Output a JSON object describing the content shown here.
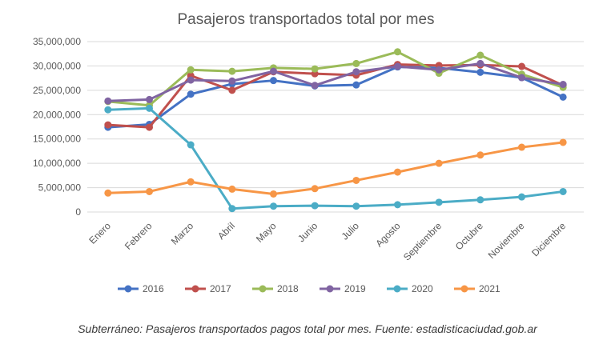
{
  "chart_data": {
    "type": "line",
    "title": "Pasajeros transportados total por mes",
    "categories": [
      "Enero",
      "Febrero",
      "Marzo",
      "Abril",
      "Mayo",
      "Junio",
      "Julio",
      "Agosto",
      "Septiembre",
      "Octubre",
      "Noviembre",
      "Diciembre"
    ],
    "ylim": [
      0,
      35000000
    ],
    "yticks": [
      0,
      5000000,
      10000000,
      15000000,
      20000000,
      25000000,
      30000000,
      35000000
    ],
    "ytick_labels": [
      "0",
      "5,000,000",
      "10,000,000",
      "15,000,000",
      "20,000,000",
      "25,000,000",
      "30,000,000",
      "35,000,000"
    ],
    "grid": true,
    "legend_position": "bottom",
    "series": [
      {
        "name": "2016",
        "color": "#4472C4",
        "values": [
          17400000,
          18000000,
          24200000,
          26300000,
          27000000,
          25900000,
          26100000,
          29800000,
          29600000,
          28700000,
          27600000,
          23600000
        ]
      },
      {
        "name": "2017",
        "color": "#C0504D",
        "values": [
          17900000,
          17400000,
          28000000,
          25000000,
          28800000,
          28400000,
          28100000,
          30300000,
          30100000,
          30200000,
          29900000,
          26000000
        ]
      },
      {
        "name": "2018",
        "color": "#9BBB59",
        "values": [
          22700000,
          21900000,
          29200000,
          28900000,
          29600000,
          29400000,
          30500000,
          32900000,
          28500000,
          32200000,
          28300000,
          25600000
        ]
      },
      {
        "name": "2019",
        "color": "#8064A2",
        "values": [
          22800000,
          23100000,
          27100000,
          26900000,
          28900000,
          26000000,
          28800000,
          29900000,
          29200000,
          30500000,
          27600000,
          26200000
        ]
      },
      {
        "name": "2020",
        "color": "#4BACC6",
        "values": [
          21000000,
          21300000,
          13800000,
          700000,
          1200000,
          1300000,
          1200000,
          1500000,
          2000000,
          2500000,
          3100000,
          4200000
        ]
      },
      {
        "name": "2021",
        "color": "#F79646",
        "values": [
          3900000,
          4200000,
          6200000,
          4700000,
          3700000,
          4800000,
          6500000,
          8200000,
          10000000,
          11700000,
          13300000,
          14300000
        ]
      }
    ]
  },
  "caption": "Subterráneo: Pasajeros transportados pagos total por mes. Fuente: estadisticaciudad.gob.ar"
}
